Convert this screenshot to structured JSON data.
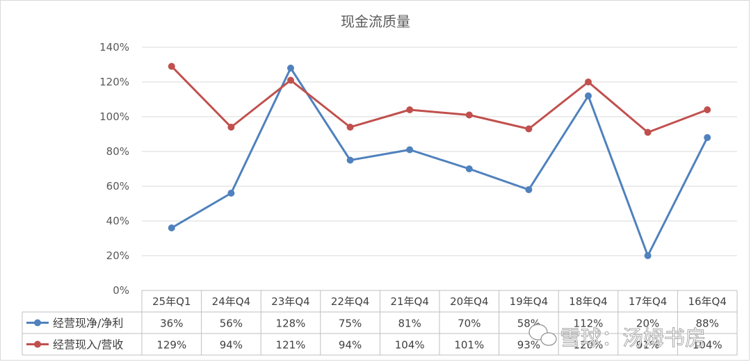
{
  "chart_data": {
    "type": "line",
    "title": "现金流质量",
    "categories": [
      "25年Q1",
      "24年Q4",
      "23年Q4",
      "22年Q4",
      "21年Q4",
      "20年Q4",
      "19年Q4",
      "18年Q4",
      "17年Q4",
      "16年Q4"
    ],
    "ylim": [
      0,
      1.4
    ],
    "yticks": [
      "0%",
      "20%",
      "40%",
      "60%",
      "80%",
      "100%",
      "120%",
      "140%"
    ],
    "grid": true,
    "legend": "bottom-table",
    "series": [
      {
        "name": "经营现净/净利",
        "color": "#4f81bd",
        "values": [
          0.36,
          0.56,
          1.28,
          0.75,
          0.81,
          0.7,
          0.58,
          1.12,
          0.2,
          0.88
        ],
        "labels": [
          "36%",
          "56%",
          "128%",
          "75%",
          "81%",
          "70%",
          "58%",
          "112%",
          "20%",
          "88%"
        ]
      },
      {
        "name": "经营现入/营收",
        "color": "#c0504d",
        "values": [
          1.29,
          0.94,
          1.21,
          0.94,
          1.04,
          1.01,
          0.93,
          1.2,
          0.91,
          1.04
        ],
        "labels": [
          "129%",
          "94%",
          "121%",
          "94%",
          "104%",
          "101%",
          "93%",
          "120%",
          "91%",
          "104%"
        ]
      }
    ]
  },
  "watermark": {
    "text": "雪球：汤姆书房",
    "icon": "wechat-icon"
  }
}
